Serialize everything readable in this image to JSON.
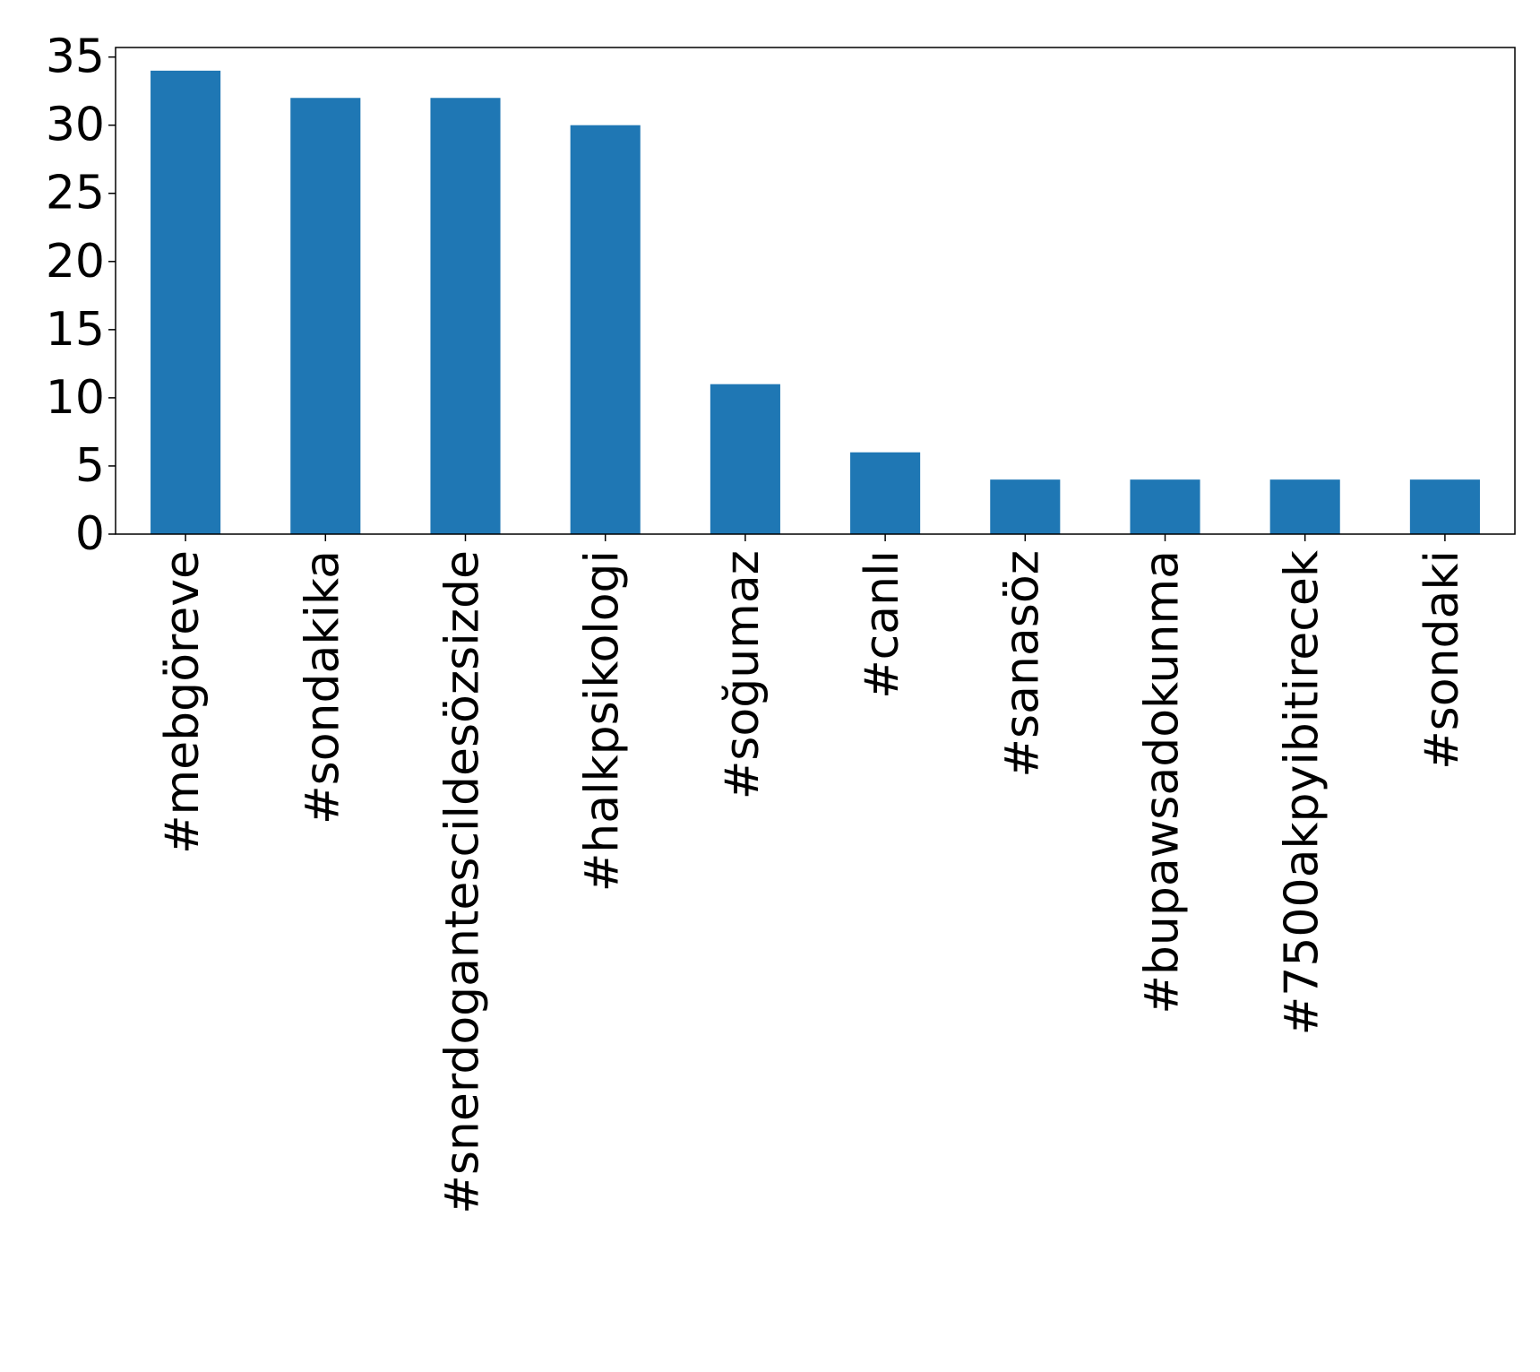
{
  "chart_data": {
    "type": "bar",
    "title": "",
    "xlabel": "",
    "ylabel": "",
    "categories": [
      "#mebgöreve",
      "#sondakika",
      "#snerdogantescildesözsizde",
      "#halkpsikologi",
      "#soğumaz",
      "#canlı",
      "#sanasöz",
      "#bupawsadokunma",
      "#7500akpyibitirecek",
      "#sondaki"
    ],
    "values": [
      34,
      32,
      32,
      30,
      11,
      6,
      4,
      4,
      4,
      4
    ],
    "ylim": [
      0,
      35.7
    ],
    "yticks": [
      0,
      5,
      10,
      15,
      20,
      25,
      30,
      35
    ],
    "grid": false,
    "legend": "none",
    "bar_color": "#1f77b4"
  }
}
